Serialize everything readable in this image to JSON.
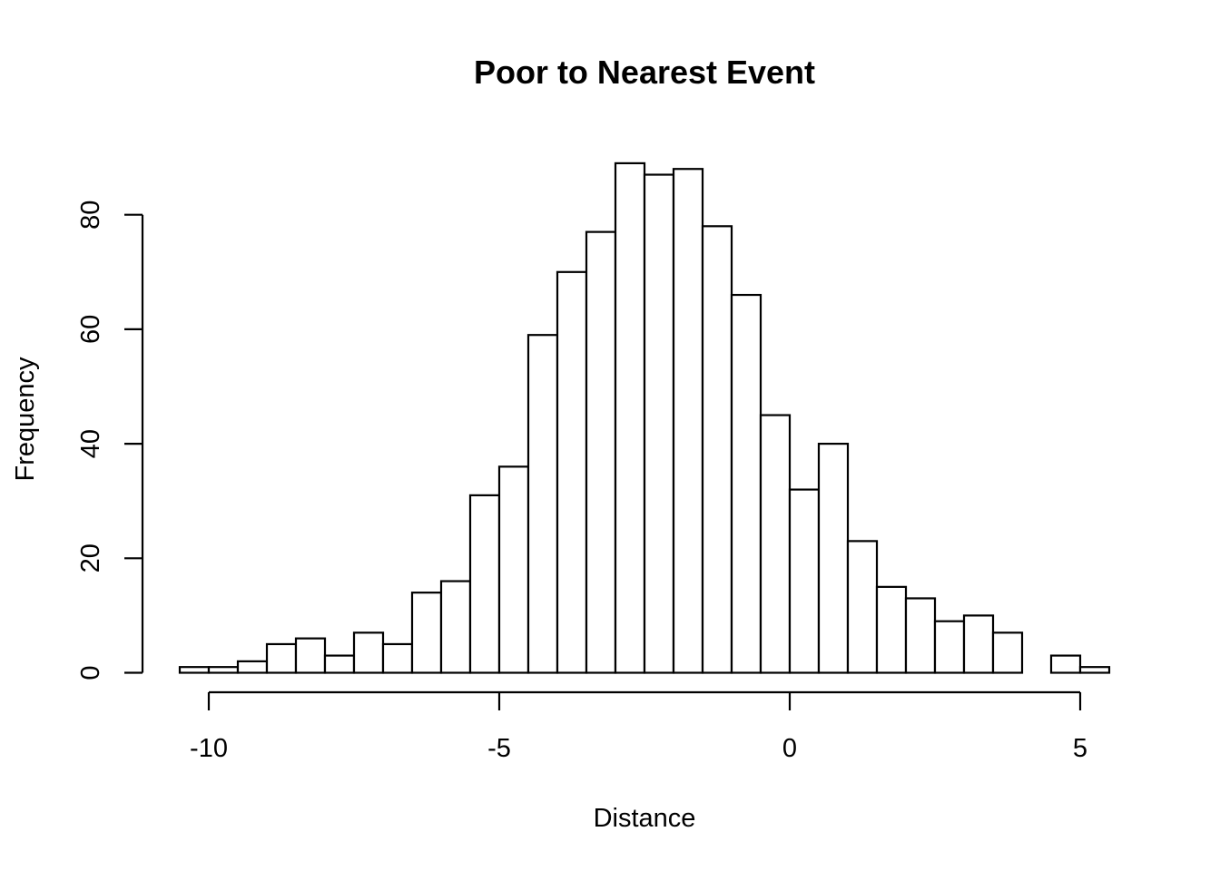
{
  "chart_data": {
    "type": "bar",
    "title": "Poor to Nearest Event",
    "xlabel": "Distance",
    "ylabel": "Frequency",
    "bin_width": 0.5,
    "bin_start": -10.5,
    "x_lim": [
      -10.5,
      5.5
    ],
    "y_lim": [
      0,
      89
    ],
    "x_ticks": [
      -10,
      -5,
      0,
      5
    ],
    "x_tick_labels": [
      "-10",
      "-5",
      "0",
      "5"
    ],
    "y_ticks": [
      0,
      20,
      40,
      60,
      80
    ],
    "y_tick_labels": [
      "0",
      "20",
      "40",
      "60",
      "80"
    ],
    "values": [
      1,
      1,
      2,
      5,
      6,
      3,
      7,
      5,
      14,
      16,
      31,
      36,
      59,
      70,
      77,
      89,
      87,
      88,
      78,
      66,
      45,
      32,
      40,
      23,
      15,
      13,
      9,
      10,
      7,
      0,
      3,
      1
    ],
    "grid": false,
    "legend": "none",
    "bar_fill": "#ffffff",
    "bar_stroke": "#000000"
  }
}
